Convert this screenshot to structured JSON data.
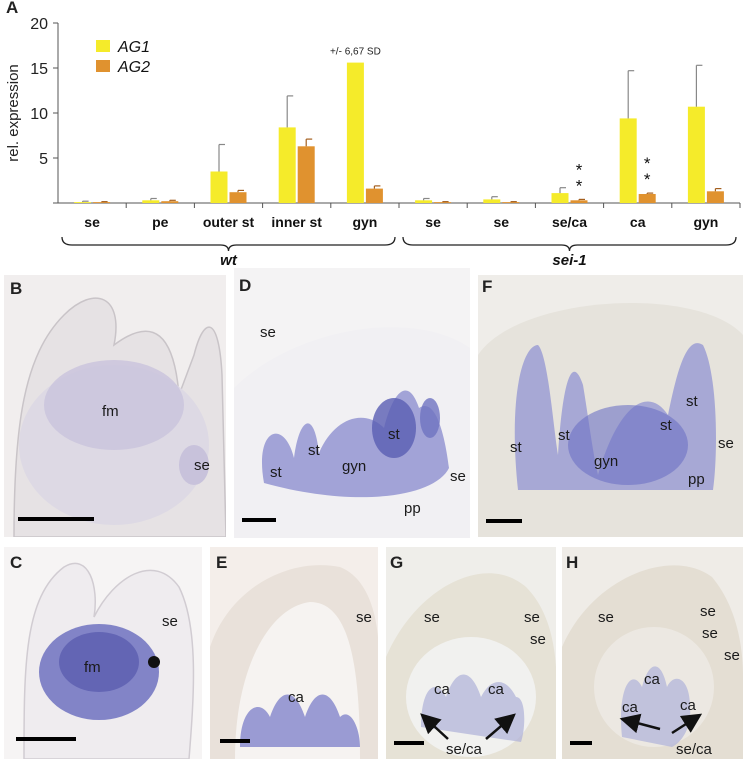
{
  "figure": {
    "panel_letter_a": "A",
    "wt_group": "wt",
    "sei_group": "sei-1",
    "sd_note": "+/- 6,67 SD",
    "significance_mark": "*"
  },
  "chart_data": {
    "type": "bar",
    "ylabel": "rel. expression",
    "ylim": [
      0,
      20
    ],
    "yticks": [
      0,
      5,
      10,
      15,
      20
    ],
    "ytick_labels": [
      "",
      "5",
      "10",
      "15",
      "20"
    ],
    "grid": false,
    "legend_position": "top-left",
    "categories": [
      "se",
      "pe",
      "outer st",
      "inner st",
      "gyn",
      "se",
      "se",
      "se/ca",
      "ca",
      "gyn"
    ],
    "groups": [
      {
        "label": "wt",
        "category_count": 5
      },
      {
        "label": "sei-1",
        "category_count": 5
      }
    ],
    "series": [
      {
        "name": "AG1",
        "color": "#f5eb2a",
        "values": [
          0.1,
          0.3,
          3.5,
          8.4,
          15.6,
          0.3,
          0.4,
          1.1,
          9.4,
          10.7
        ],
        "errors": [
          0.1,
          0.2,
          3.0,
          3.5,
          0,
          0.2,
          0.3,
          0.6,
          5.3,
          4.6
        ]
      },
      {
        "name": "AG2",
        "color": "#e0922f",
        "values": [
          0.1,
          0.2,
          1.2,
          6.3,
          1.6,
          0.1,
          0.1,
          0.3,
          1.0,
          1.3
        ],
        "errors": [
          0.05,
          0.1,
          0.2,
          0.8,
          0.3,
          0.05,
          0.05,
          0.1,
          0.1,
          0.3
        ]
      }
    ],
    "annotations": [
      {
        "text": "+/- 6,67 SD",
        "category_index": 4,
        "series": "AG1"
      },
      {
        "text": "**",
        "category_index": 7,
        "series": "AG2"
      },
      {
        "text": "**",
        "category_index": 8,
        "series": "AG2"
      }
    ]
  },
  "panels": [
    {
      "id": "B",
      "letter": "B",
      "stain_level": 0.3,
      "labels": [
        "fm",
        "se"
      ]
    },
    {
      "id": "C",
      "letter": "C",
      "stain_level": 0.8,
      "labels": [
        "fm",
        "se"
      ]
    },
    {
      "id": "D",
      "letter": "D",
      "stain_level": 0.6,
      "labels": [
        "se",
        "st",
        "st",
        "gyn",
        "st",
        "se",
        "pp"
      ]
    },
    {
      "id": "E",
      "letter": "E",
      "stain_level": 0.6,
      "labels": [
        "ca",
        "se"
      ]
    },
    {
      "id": "F",
      "letter": "F",
      "stain_level": 0.7,
      "labels": [
        "st",
        "st",
        "gyn",
        "st",
        "st",
        "se",
        "pp"
      ]
    },
    {
      "id": "G",
      "letter": "G",
      "stain_level": 0.3,
      "labels": [
        "se",
        "se",
        "se",
        "ca",
        "ca",
        "se/ca"
      ]
    },
    {
      "id": "H",
      "letter": "H",
      "stain_level": 0.3,
      "labels": [
        "se",
        "se",
        "se",
        "se",
        "ca",
        "ca",
        "ca",
        "se/ca"
      ]
    }
  ]
}
